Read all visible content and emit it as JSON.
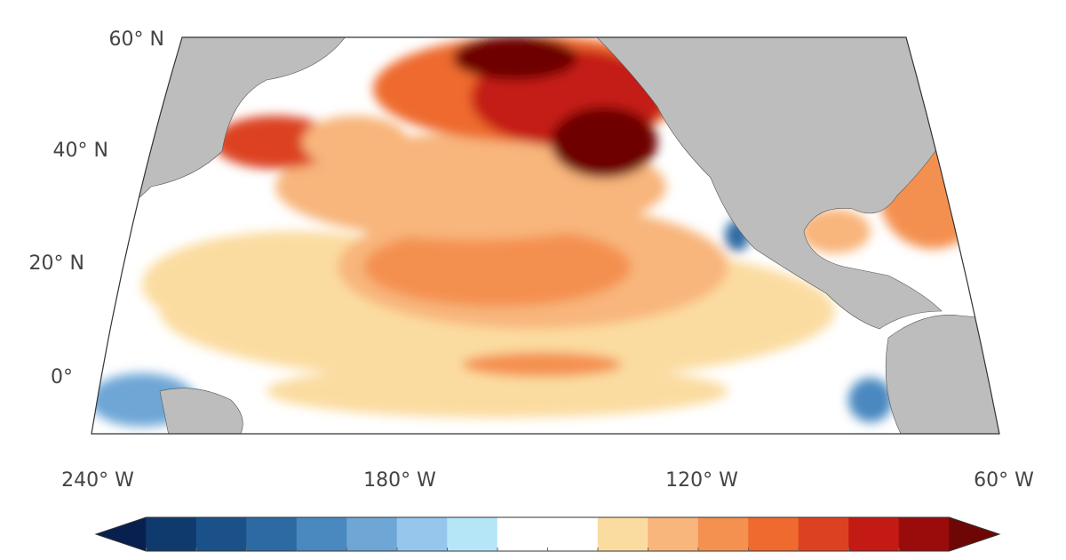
{
  "map": {
    "lat_labels": [
      "60° N",
      "40° N",
      "20° N",
      "0°"
    ],
    "lon_labels": [
      "240° W",
      "180° W",
      "120° W",
      "60° W"
    ],
    "colorbar": {
      "colors": [
        "#08204f",
        "#0e3a6e",
        "#1b5189",
        "#2d6aa3",
        "#4a88c0",
        "#6ea6d6",
        "#96c6ec",
        "#b4e6f8",
        "#ffffff",
        "#ffffff",
        "#fbdca0",
        "#f8b57c",
        "#f49050",
        "#ee6a2e",
        "#dc4221",
        "#c41a14",
        "#9a0c0c",
        "#6e0606"
      ]
    }
  }
}
